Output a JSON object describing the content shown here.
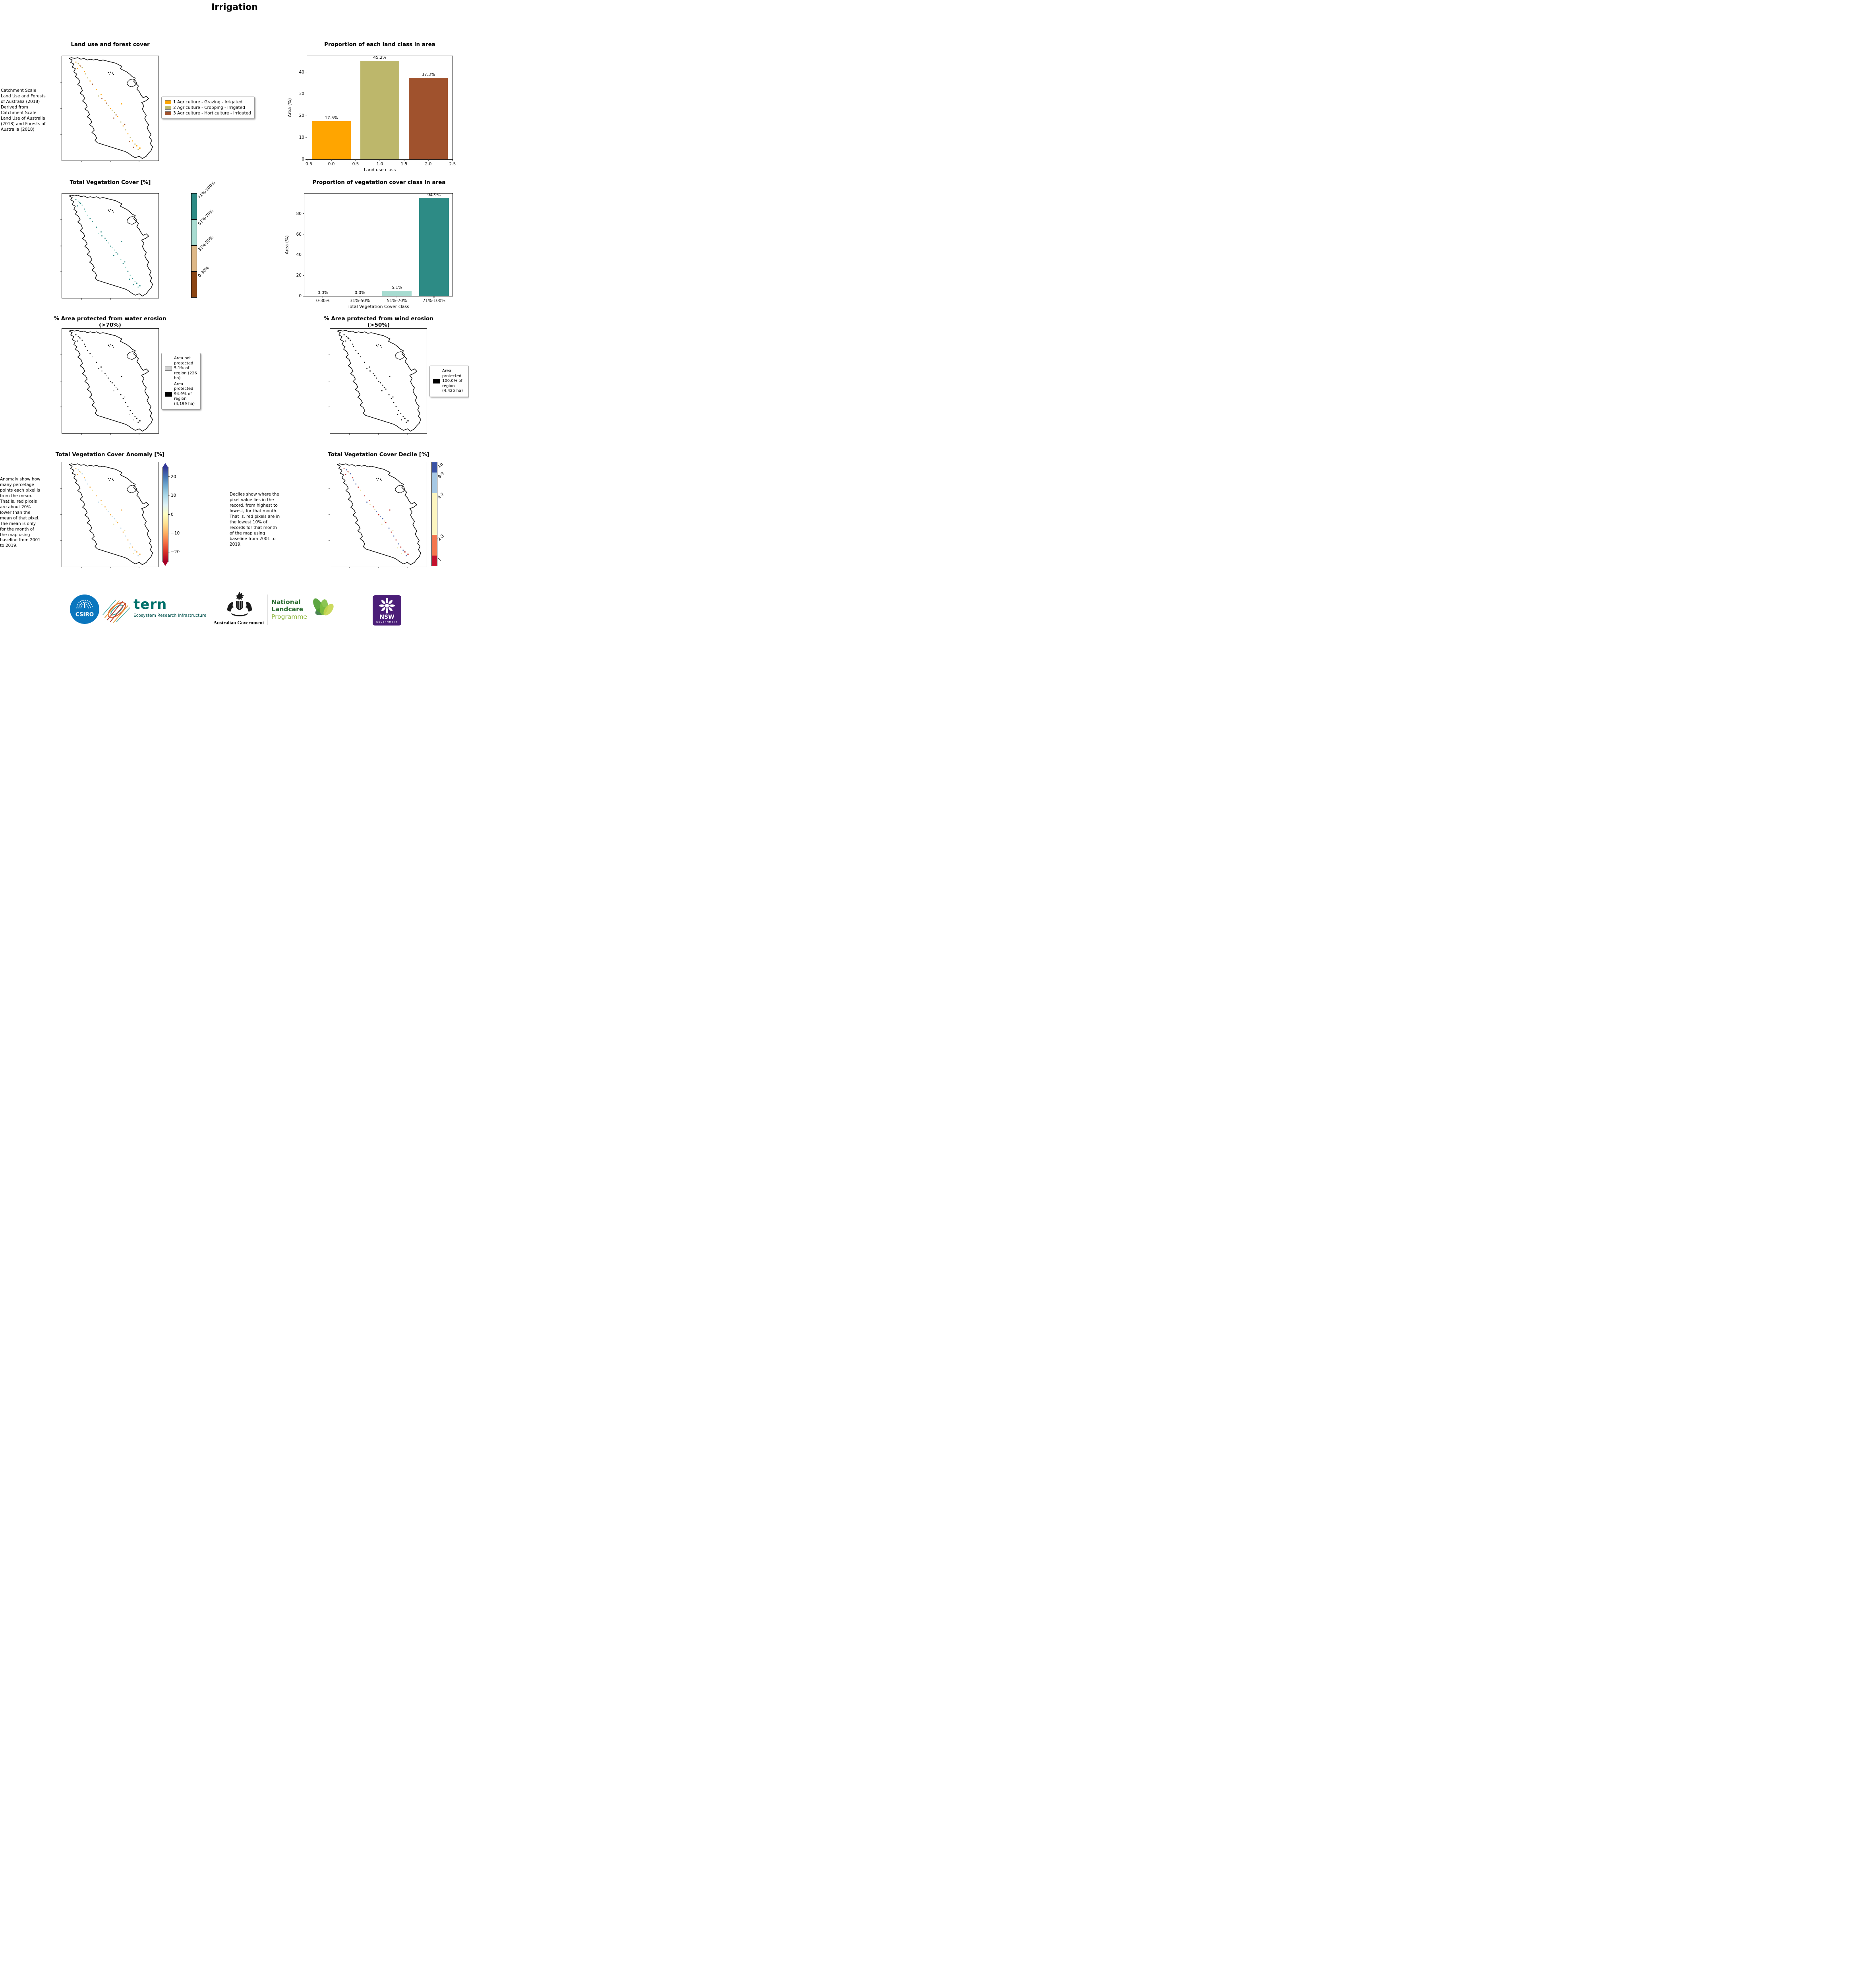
{
  "page": {
    "title": "Irrigation"
  },
  "land_use": {
    "title": "Land use and forest cover",
    "description": "Catchment Scale Land Use and Forests of Australia (2018) Derived from Catchment Scale Land Use of Australia (2018) and Forests of Australia (2018)",
    "legend": [
      {
        "label": "1 Agriculture - Grazing - Irrigated",
        "color": "#FFA500"
      },
      {
        "label": "2 Agriculture - Cropping - Irrigated",
        "color": "#BDB76B"
      },
      {
        "label": "3 Agriculture - Horticulture - Irrigated",
        "color": "#A0522D"
      }
    ]
  },
  "veg_cover": {
    "title": "Total Vegetation Cover [%]",
    "colorbar": [
      {
        "label": "71%-100%",
        "color": "#2D8B85"
      },
      {
        "label": "51%-70%",
        "color": "#A8DCD1"
      },
      {
        "label": "31%-50%",
        "color": "#DEB887"
      },
      {
        "label": "0-30%",
        "color": "#8B4513"
      }
    ]
  },
  "water_erosion": {
    "title": "% Area protected from water erosion (>70%)",
    "legend": [
      {
        "label": "Area not protected 5.1% of region (226 ha)",
        "color": "#D3D3D3"
      },
      {
        "label": "Area protected 94.9% of region (4,199 ha)",
        "color": "#000000"
      }
    ]
  },
  "wind_erosion": {
    "title": "% Area protected from wind erosion (>50%)",
    "legend": [
      {
        "label": "Area protected 100.0% of region (4,425 ha)",
        "color": "#000000"
      }
    ]
  },
  "anomaly": {
    "title": "Total Vegetation Cover Anomaly [%]",
    "description": "Anomaly show how many percetage points each pixel is from the mean. That is, red pixels are about 20% lower than the mean of that pixel. The mean is only for the month of the map using baseline from 2001 to 2019.",
    "colorbar_ticks": [
      "20",
      "10",
      "0",
      "−10",
      "−20"
    ],
    "colorbar_range": [
      -25,
      25
    ]
  },
  "decile": {
    "title": "Total Vegetation Cover Decile [%]",
    "description": "Deciles show where the pixel value lies in the record, from highest to lowest, for that month. That is, red pixels are in the lowest 10% of records for that month of the map using baseline from 2001 to 2019.",
    "colorbar": [
      {
        "label": "10",
        "color": "#3A53A4",
        "span": 10
      },
      {
        "label": "8-9",
        "color": "#A6C8E4",
        "span": 20
      },
      {
        "label": "4-7",
        "color": "#FDF6C0",
        "span": 40
      },
      {
        "label": "2-3",
        "color": "#F4764E",
        "span": 20
      },
      {
        "label": "1",
        "color": "#C3112D",
        "span": 10
      }
    ]
  },
  "chart_data": [
    {
      "id": "land-class-proportion",
      "type": "bar",
      "title": "Proportion of each land class in area",
      "x": [
        0,
        1,
        2
      ],
      "values": [
        17.5,
        45.2,
        37.3
      ],
      "bar_labels": [
        "17.5%",
        "45.2%",
        "37.3%"
      ],
      "colors": [
        "#FFA500",
        "#BDB76B",
        "#A0522D"
      ],
      "xlabel": "Land use class",
      "ylabel": "Area (%)",
      "xlim": [
        -0.5,
        2.5
      ],
      "ylim": [
        0,
        47.4
      ],
      "xticks": [
        "−0.5",
        "0.0",
        "0.5",
        "1.0",
        "1.5",
        "2.0",
        "2.5"
      ],
      "yticks": [
        0,
        10,
        20,
        30,
        40
      ],
      "grid": false,
      "legend_position": "none"
    },
    {
      "id": "veg-cover-class-proportion",
      "type": "bar",
      "title": "Proportion of vegetation cover class in area",
      "categories": [
        "0-30%",
        "31%-50%",
        "51%-70%",
        "71%-100%"
      ],
      "values": [
        0.0,
        0.0,
        5.1,
        94.9
      ],
      "bar_labels": [
        "0.0%",
        "0.0%",
        "5.1%",
        "94.9%"
      ],
      "colors": [
        "#8B4513",
        "#DEB887",
        "#A8DCD1",
        "#2D8B85"
      ],
      "xlabel": "Total Vegetation Cover class",
      "ylabel": "Area (%)",
      "ylim": [
        0,
        99.6
      ],
      "yticks": [
        0,
        20,
        40,
        60,
        80
      ],
      "grid": false,
      "legend_position": "none"
    }
  ],
  "footer": {
    "csiro": "CSIRO",
    "tern": "tern",
    "tern_sub": "Ecosystem Research Infrastructure",
    "aus_gov": "Australian Government",
    "landcare_1": "National",
    "landcare_2": "Landcare",
    "landcare_3": "Programme",
    "nsw": "NSW",
    "nsw_sub": "GOVERNMENT",
    "colors": {
      "csiro_blue": "#0A76BE",
      "tern_teal": "#00716B",
      "landcare_green": "#2C6E33",
      "landcare_light": "#8DB63C",
      "nsw_purple": "#4B1E78"
    }
  }
}
